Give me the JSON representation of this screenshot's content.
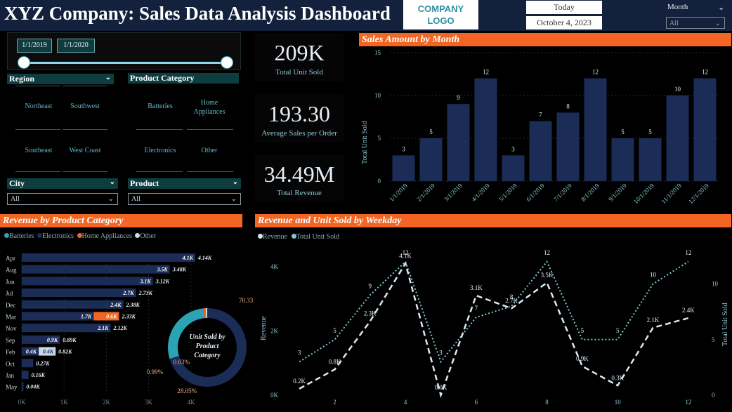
{
  "header": {
    "title": "XYZ Company: Sales Data Analysis Dashboard",
    "logo": "COMPANY LOGO",
    "today_label": "Today",
    "today_date": "October 4, 2023",
    "month_label": "Month",
    "month_value": "All"
  },
  "filters": {
    "date_start": "1/1/2019",
    "date_end": "1/1/2020",
    "region": {
      "label": "Region",
      "items": [
        "Northeast",
        "Southwest",
        "Southeast",
        "West Coast"
      ]
    },
    "category": {
      "label": "Product Category",
      "items": [
        "Batteries",
        "Home Appliances",
        "Electronics",
        "Other"
      ]
    },
    "city": {
      "label": "City",
      "value": "All"
    },
    "product": {
      "label": "Product",
      "value": "All"
    }
  },
  "kpis": [
    {
      "value": "209K",
      "label": "Total Unit Sold"
    },
    {
      "value": "193.30",
      "label": "Average Sales per Order"
    },
    {
      "value": "34.49M",
      "label": "Total Revenue"
    }
  ],
  "colors": {
    "navy": "#1b2d57",
    "orange": "#f26522",
    "teal": "#2ba3b3",
    "light": "#c9dbe8",
    "dot": "#7fc8d1"
  },
  "chart_data": [
    {
      "type": "bar",
      "title": "Sales Amount by Month",
      "ylabel": "Total Unit Sold",
      "ylim": [
        0,
        15
      ],
      "yticks": [
        0,
        5,
        10,
        15
      ],
      "categories": [
        "1/1/2019",
        "2/1/2019",
        "3/1/2019",
        "4/1/2019",
        "5/1/2019",
        "6/1/2019",
        "7/1/2019",
        "8/1/2019",
        "9/1/2019",
        "10/1/2019",
        "11/1/2019",
        "12/1/2019"
      ],
      "values": [
        3,
        5,
        9,
        12,
        3,
        7,
        8,
        12,
        5,
        5,
        10,
        12
      ]
    },
    {
      "type": "bar",
      "orientation": "horizontal",
      "stacked": true,
      "title": "Revenue by Product Category",
      "legend": [
        "Batteries",
        "Electronics",
        "Home Appliances",
        "Other"
      ],
      "xticks": [
        "0K",
        "1K",
        "2K",
        "3K",
        "4K"
      ],
      "xlim": [
        0,
        4.5
      ],
      "categories": [
        "Apr",
        "Aug",
        "Jun",
        "Jul",
        "Dec",
        "Mar",
        "Nov",
        "Sep",
        "Feb",
        "Oct",
        "Jan",
        "May"
      ],
      "segments": [
        [
          {
            "s": "Electronics",
            "v": 4.1,
            "label": "4.1K"
          }
        ],
        [
          {
            "s": "Electronics",
            "v": 3.5,
            "label": "3.5K"
          }
        ],
        [
          {
            "s": "Electronics",
            "v": 3.1,
            "label": "3.1K"
          }
        ],
        [
          {
            "s": "Electronics",
            "v": 2.7,
            "label": "2.7K"
          }
        ],
        [
          {
            "s": "Electronics",
            "v": 2.4,
            "label": "2.4K"
          }
        ],
        [
          {
            "s": "Electronics",
            "v": 1.7,
            "label": "1.7K"
          },
          {
            "s": "Home Appliances",
            "v": 0.6,
            "label": "0.6K"
          }
        ],
        [
          {
            "s": "Electronics",
            "v": 2.1,
            "label": "2.1K"
          }
        ],
        [
          {
            "s": "Electronics",
            "v": 0.9,
            "label": "0.9K"
          }
        ],
        [
          {
            "s": "Electronics",
            "v": 0.4,
            "label": "0.4K"
          },
          {
            "s": "Other",
            "v": 0.4,
            "label": "0.4K"
          }
        ],
        [
          {
            "s": "Electronics",
            "v": 0.27,
            "label": ""
          }
        ],
        [
          {
            "s": "Electronics",
            "v": 0.16,
            "label": ""
          }
        ],
        [
          {
            "s": "Electronics",
            "v": 0.04,
            "label": ""
          }
        ]
      ],
      "totals": [
        "4.14K",
        "3.48K",
        "3.12K",
        "2.73K",
        "2.38K",
        "2.33K",
        "2.12K",
        "0.89K",
        "0.82K",
        "0.27K",
        "0.16K",
        "0.04K"
      ]
    },
    {
      "type": "pie",
      "donut": true,
      "title": "Unit Sold by Product Category",
      "slices": [
        {
          "name": "Electronics",
          "value": 70.33,
          "label": "70.33%"
        },
        {
          "name": "Batteries",
          "value": 28.05,
          "label": "28.05%"
        },
        {
          "name": "Home Appliances",
          "value": 0.99,
          "label": "0.99%"
        },
        {
          "name": "Other",
          "value": 0.63,
          "label": "0.63%"
        }
      ]
    },
    {
      "type": "line",
      "title": "Revenue and Unit Sold by Weekday",
      "x": [
        1,
        2,
        3,
        4,
        5,
        6,
        7,
        8,
        9,
        10,
        11,
        12
      ],
      "xticks": [
        2,
        4,
        6,
        8,
        10,
        12
      ],
      "ylabel": "Revenue",
      "y2label": "Total Unit Sold",
      "yticks": [
        "0K",
        "2K",
        "4K"
      ],
      "ylim": [
        0,
        4.5
      ],
      "y2ticks": [
        "0",
        "5",
        "10"
      ],
      "y2lim": [
        0,
        13
      ],
      "series": [
        {
          "name": "Revenue",
          "axis": "left",
          "values": [
            0.2,
            0.8,
            2.3,
            4.1,
            0.0,
            3.1,
            2.7,
            3.5,
            0.9,
            0.3,
            2.1,
            2.4
          ],
          "labels": [
            "0.2K",
            "0.8K",
            "2.3K",
            "4.1K",
            "0.0K",
            "3.1K",
            "2.7K",
            "3.5K",
            "0.9K",
            "0.3K",
            "2.1K",
            "2.4K"
          ]
        },
        {
          "name": "Total Unit Sold",
          "axis": "right",
          "values": [
            3,
            5,
            9,
            12,
            3,
            7,
            8,
            12,
            5,
            5,
            10,
            12
          ],
          "labels": [
            "3",
            "5",
            "9",
            "12",
            "3",
            "7",
            "8",
            "12",
            "5",
            "5",
            "10",
            "12"
          ]
        }
      ]
    }
  ]
}
